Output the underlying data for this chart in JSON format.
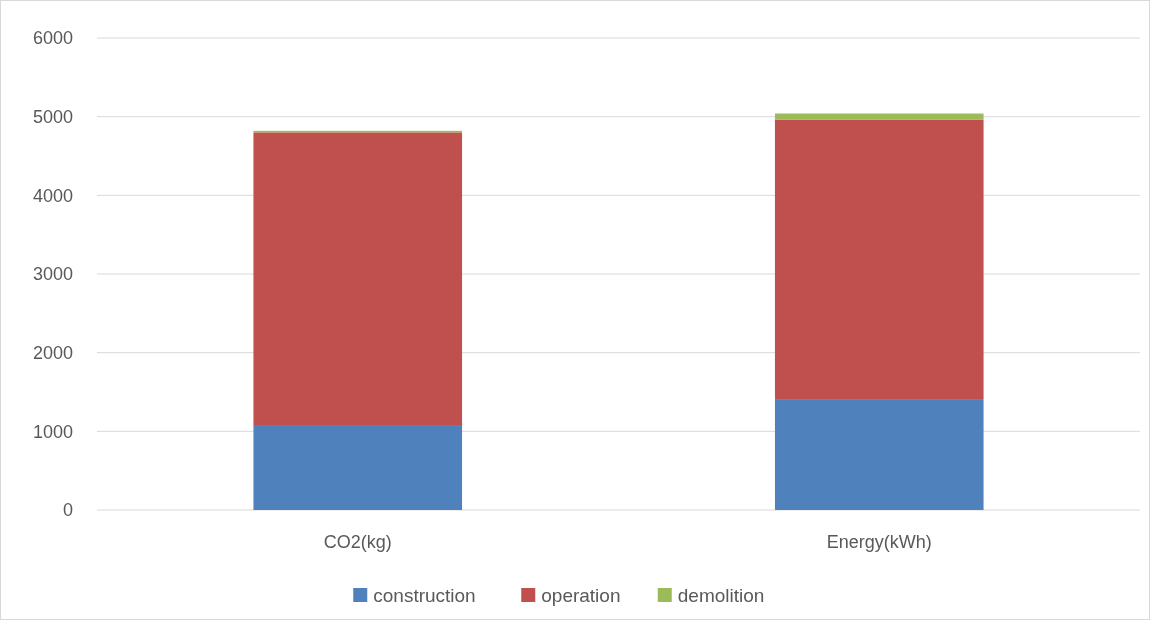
{
  "chart_data": {
    "type": "bar",
    "stacked": true,
    "categories": [
      "CO2(kg)",
      "Energy(kWh)"
    ],
    "series": [
      {
        "name": "construction",
        "color": "#4f81bd",
        "values": [
          1080,
          1410
        ]
      },
      {
        "name": "operation",
        "color": "#c0504d",
        "values": [
          3720,
          3550
        ]
      },
      {
        "name": "demolition",
        "color": "#9bbb59",
        "values": [
          20,
          80
        ]
      }
    ],
    "ylim": [
      0,
      6000
    ],
    "yticks": [
      0,
      1000,
      2000,
      3000,
      4000,
      5000,
      6000
    ],
    "grid": "y",
    "legend": "bottom"
  }
}
